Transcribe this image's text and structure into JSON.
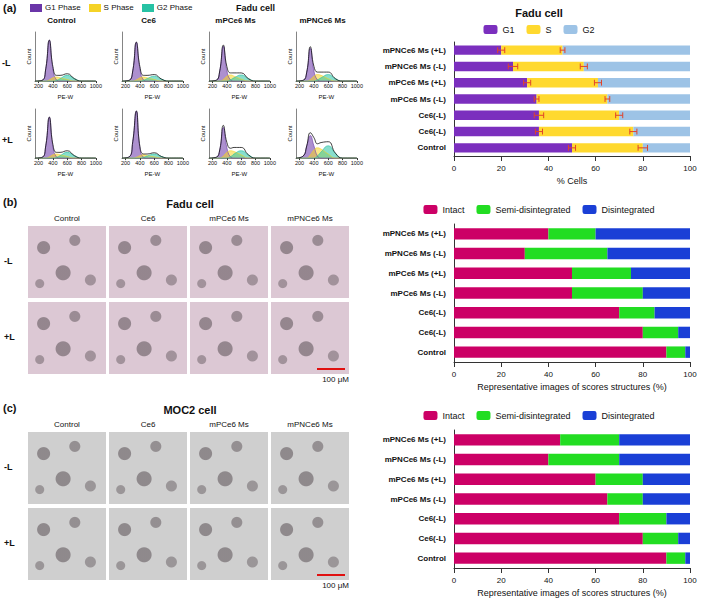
{
  "figure": {
    "panel_labels": [
      "(a)",
      "(b)",
      "(c)"
    ],
    "histograms": {
      "title": "Fadu cell",
      "columns": [
        "Control",
        "Ce6",
        "mPCe6 Ms",
        "mPNCe6 Ms"
      ],
      "rows": [
        "-L",
        "+L"
      ]
    },
    "image_grids": [
      {
        "title": "Fadu cell",
        "columns": [
          "Control",
          "Ce6",
          "mPCe6 Ms",
          "mPNCe6 Ms"
        ],
        "rows": [
          "-L",
          "+L"
        ],
        "scale_bar": "100 μM"
      },
      {
        "title": "MOC2 cell",
        "columns": [
          "Control",
          "Ce6",
          "mPCe6 Ms",
          "mPNCe6 Ms"
        ],
        "rows": [
          "-L",
          "+L"
        ],
        "scale_bar": "100 μM"
      }
    ]
  },
  "chart_data": [
    {
      "type": "line",
      "xlabel": "PE-W",
      "ylabel": "Count",
      "xlim": [
        150,
        1000
      ],
      "ylim": [
        0,
        120
      ],
      "xticks": [
        200,
        400,
        600,
        800,
        1000
      ],
      "tick_labels": "x",
      "grid": false,
      "x": [
        150,
        250,
        300,
        350,
        400,
        450,
        500,
        600,
        700,
        800,
        1000
      ],
      "values": [
        0,
        2,
        30,
        100,
        35,
        14,
        14,
        18,
        6,
        0,
        0
      ],
      "series": [
        {
          "name": "G1 Phase",
          "color": "#6a35a8",
          "values": [
            0,
            2,
            30,
            100,
            30,
            3,
            0,
            0,
            0,
            0,
            0
          ]
        },
        {
          "name": "S Phase",
          "color": "#f5d327",
          "values": [
            0,
            0,
            0,
            3,
            8,
            10,
            8,
            4,
            0,
            0,
            0
          ]
        },
        {
          "name": "G2 Phase",
          "color": "#27c2a4",
          "values": [
            0,
            0,
            0,
            0,
            0,
            2,
            6,
            14,
            6,
            0,
            0
          ]
        }
      ]
    },
    {
      "type": "line",
      "xlabel": "PE-W",
      "ylabel": "Count",
      "xlim": [
        150,
        1000
      ],
      "ylim": [
        0,
        120
      ],
      "xticks": [
        200,
        400,
        600,
        800,
        1000
      ],
      "tick_labels": "x",
      "grid": false,
      "x": [
        150,
        250,
        300,
        350,
        400,
        450,
        500,
        600,
        700,
        800,
        1000
      ],
      "values": [
        0,
        2,
        25,
        95,
        35,
        14,
        14,
        16,
        5,
        0,
        0
      ],
      "series": [
        {
          "name": "G1 Phase",
          "color": "#6a35a8",
          "values": [
            0,
            2,
            25,
            95,
            30,
            3,
            0,
            0,
            0,
            0,
            0
          ]
        },
        {
          "name": "S Phase",
          "color": "#f5d327",
          "values": [
            0,
            0,
            0,
            3,
            8,
            10,
            8,
            4,
            0,
            0,
            0
          ]
        },
        {
          "name": "G2 Phase",
          "color": "#27c2a4",
          "values": [
            0,
            0,
            0,
            0,
            0,
            2,
            6,
            12,
            5,
            0,
            0
          ]
        }
      ]
    },
    {
      "type": "line",
      "xlabel": "PE-W",
      "ylabel": "Count",
      "xlim": [
        150,
        1000
      ],
      "ylim": [
        0,
        120
      ],
      "xticks": [
        200,
        400,
        600,
        800,
        1000
      ],
      "tick_labels": "x",
      "grid": false,
      "x": [
        150,
        250,
        300,
        350,
        400,
        450,
        500,
        600,
        700,
        800,
        1000
      ],
      "values": [
        0,
        2,
        25,
        88,
        35,
        20,
        20,
        20,
        6,
        0,
        0
      ],
      "series": [
        {
          "name": "G1 Phase",
          "color": "#6a35a8",
          "values": [
            0,
            2,
            25,
            85,
            25,
            3,
            0,
            0,
            0,
            0,
            0
          ]
        },
        {
          "name": "S Phase",
          "color": "#f5d327",
          "values": [
            0,
            0,
            0,
            4,
            12,
            15,
            12,
            5,
            0,
            0,
            0
          ]
        },
        {
          "name": "G2 Phase",
          "color": "#27c2a4",
          "values": [
            0,
            0,
            0,
            0,
            0,
            3,
            8,
            15,
            6,
            0,
            0
          ]
        }
      ]
    },
    {
      "type": "line",
      "xlabel": "PE-W",
      "ylabel": "Count",
      "xlim": [
        150,
        1000
      ],
      "ylim": [
        0,
        120
      ],
      "xticks": [
        200,
        400,
        600,
        800,
        1000
      ],
      "tick_labels": "x",
      "grid": false,
      "x": [
        150,
        250,
        300,
        350,
        400,
        450,
        500,
        600,
        700,
        800,
        1000
      ],
      "values": [
        0,
        2,
        22,
        84,
        36,
        22,
        22,
        22,
        6,
        0,
        0
      ],
      "series": [
        {
          "name": "G1 Phase",
          "color": "#6a35a8",
          "values": [
            0,
            2,
            22,
            80,
            25,
            3,
            0,
            0,
            0,
            0,
            0
          ]
        },
        {
          "name": "S Phase",
          "color": "#f5d327",
          "values": [
            0,
            0,
            0,
            4,
            12,
            16,
            14,
            6,
            0,
            0,
            0
          ]
        },
        {
          "name": "G2 Phase",
          "color": "#27c2a4",
          "values": [
            0,
            0,
            0,
            0,
            0,
            3,
            8,
            16,
            6,
            0,
            0
          ]
        }
      ]
    },
    {
      "type": "line",
      "xlabel": "PE-W",
      "ylabel": "Count",
      "xlim": [
        150,
        1000
      ],
      "ylim": [
        0,
        120
      ],
      "xticks": [
        200,
        400,
        600,
        800,
        1000
      ],
      "tick_labels": "x",
      "grid": false,
      "x": [
        150,
        250,
        300,
        350,
        400,
        450,
        500,
        600,
        700,
        800,
        1000
      ],
      "values": [
        0,
        2,
        30,
        100,
        33,
        14,
        14,
        18,
        6,
        0,
        0
      ],
      "series": [
        {
          "name": "G1 Phase",
          "color": "#6a35a8",
          "values": [
            0,
            2,
            30,
            100,
            28,
            3,
            0,
            0,
            0,
            0,
            0
          ]
        },
        {
          "name": "S Phase",
          "color": "#f5d327",
          "values": [
            0,
            0,
            0,
            3,
            8,
            10,
            8,
            4,
            0,
            0,
            0
          ]
        },
        {
          "name": "G2 Phase",
          "color": "#27c2a4",
          "values": [
            0,
            0,
            0,
            0,
            0,
            2,
            6,
            14,
            6,
            0,
            0
          ]
        }
      ]
    },
    {
      "type": "line",
      "xlabel": "PE-W",
      "ylabel": "Count",
      "xlim": [
        150,
        1000
      ],
      "ylim": [
        0,
        120
      ],
      "xticks": [
        200,
        400,
        600,
        800,
        1000
      ],
      "tick_labels": "x",
      "grid": false,
      "x": [
        150,
        250,
        300,
        350,
        400,
        450,
        500,
        600,
        700,
        800,
        1000
      ],
      "values": [
        0,
        3,
        40,
        115,
        28,
        10,
        10,
        13,
        4,
        0,
        0
      ],
      "series": [
        {
          "name": "G1 Phase",
          "color": "#6a35a8",
          "values": [
            0,
            3,
            40,
            115,
            25,
            2,
            0,
            0,
            0,
            0,
            0
          ]
        },
        {
          "name": "S Phase",
          "color": "#f5d327",
          "values": [
            0,
            0,
            0,
            2,
            6,
            8,
            6,
            3,
            0,
            0,
            0
          ]
        },
        {
          "name": "G2 Phase",
          "color": "#27c2a4",
          "values": [
            0,
            0,
            0,
            0,
            0,
            2,
            5,
            10,
            4,
            0,
            0
          ]
        }
      ]
    },
    {
      "type": "line",
      "xlabel": "PE-W",
      "ylabel": "Count",
      "xlim": [
        150,
        1000
      ],
      "ylim": [
        0,
        120
      ],
      "xticks": [
        200,
        400,
        600,
        800,
        1000
      ],
      "tick_labels": "x",
      "grid": false,
      "x": [
        150,
        250,
        300,
        350,
        400,
        450,
        500,
        600,
        700,
        800,
        1000
      ],
      "values": [
        0,
        2,
        20,
        80,
        38,
        24,
        26,
        26,
        8,
        0,
        0
      ],
      "series": [
        {
          "name": "G1 Phase",
          "color": "#6a35a8",
          "values": [
            0,
            2,
            20,
            75,
            25,
            3,
            0,
            0,
            0,
            0,
            0
          ]
        },
        {
          "name": "S Phase",
          "color": "#f5d327",
          "values": [
            0,
            0,
            0,
            5,
            14,
            18,
            16,
            8,
            0,
            0,
            0
          ]
        },
        {
          "name": "G2 Phase",
          "color": "#27c2a4",
          "values": [
            0,
            0,
            0,
            0,
            0,
            3,
            10,
            18,
            8,
            0,
            0
          ]
        }
      ]
    },
    {
      "type": "line",
      "xlabel": "PE-W",
      "ylabel": "Count",
      "xlim": [
        150,
        1000
      ],
      "ylim": [
        0,
        120
      ],
      "xticks": [
        200,
        400,
        600,
        800,
        1000
      ],
      "tick_labels": "x",
      "grid": false,
      "x": [
        150,
        250,
        300,
        350,
        400,
        450,
        500,
        600,
        700,
        800,
        1000
      ],
      "values": [
        0,
        5,
        30,
        62,
        50,
        35,
        38,
        40,
        12,
        0,
        0
      ],
      "series": [
        {
          "name": "G1 Phase",
          "color": "#6a35a8",
          "values": [
            0,
            5,
            30,
            55,
            30,
            5,
            0,
            0,
            0,
            0,
            0
          ]
        },
        {
          "name": "S Phase",
          "color": "#f5d327",
          "values": [
            0,
            0,
            0,
            8,
            20,
            25,
            22,
            10,
            0,
            0,
            0
          ]
        },
        {
          "name": "G2 Phase",
          "color": "#27c2a4",
          "values": [
            0,
            0,
            0,
            0,
            0,
            5,
            15,
            30,
            12,
            0,
            0
          ]
        }
      ]
    },
    {
      "type": "bar",
      "orientation": "horizontal",
      "stacked": true,
      "legend": "top",
      "grid": false,
      "title": "Fadu cell",
      "xlabel": "% Cells",
      "categories": [
        "Control",
        "Ce6(-L)",
        "Ce6(-L)",
        "mPCe6 Ms (-L)",
        "mPCe6 Ms (+L)",
        "mPNCe6 Ms (-L)",
        "mPNCe6 Ms (+L)"
      ],
      "xlim": [
        0,
        100
      ],
      "xticks": [
        0,
        20,
        40,
        60,
        80,
        100
      ],
      "series": [
        {
          "name": "G1",
          "color": "#7b2fbe",
          "values": [
            50,
            36,
            36,
            35,
            31,
            25,
            20
          ],
          "errors": [
            1.5,
            1.5,
            2,
            1,
            1.5,
            2,
            1.5
          ]
        },
        {
          "name": "S",
          "color": "#ffd92f",
          "values": [
            30,
            40,
            34,
            30,
            30,
            30,
            26
          ],
          "errors": [
            2,
            1.5,
            1.5,
            1,
            1.5,
            1.5,
            1
          ]
        },
        {
          "name": "G2",
          "color": "#9dc3e6",
          "values": [
            20,
            24,
            30,
            35,
            39,
            45,
            54
          ]
        }
      ]
    },
    {
      "type": "bar",
      "orientation": "horizontal",
      "stacked": true,
      "legend": "top",
      "grid": false,
      "xlabel": "Representative images of scores structures (%)",
      "categories": [
        "Control",
        "Ce6(-L)",
        "Ce6(-L)",
        "mPCe6 Ms (-L)",
        "mPCe6 Ms (+L)",
        "mPNCe6 Ms (-L)",
        "mPNCe6 Ms (+L)"
      ],
      "xlim": [
        0,
        100
      ],
      "xticks": [
        0,
        20,
        40,
        60,
        80,
        100
      ],
      "series": [
        {
          "name": "Intact",
          "color": "#cc0066",
          "values": [
            90,
            80,
            70,
            50,
            50,
            30,
            40
          ]
        },
        {
          "name": "Semi-disintegrated",
          "color": "#22dd22",
          "values": [
            8,
            15,
            15,
            30,
            25,
            35,
            20
          ]
        },
        {
          "name": "Disintegrated",
          "color": "#1a3fd6",
          "values": [
            2,
            5,
            15,
            20,
            25,
            35,
            40
          ]
        }
      ]
    },
    {
      "type": "bar",
      "orientation": "horizontal",
      "stacked": true,
      "legend": "top",
      "grid": false,
      "xlabel": "Representative images of scores structures (%)",
      "categories": [
        "Control",
        "Ce6(-L)",
        "Ce6(-L)",
        "mPCe6 Ms (-L)",
        "mPCe6 Ms (+L)",
        "mPNCe6 Ms (-L)",
        "mPNCe6 Ms (+L)"
      ],
      "xlim": [
        0,
        100
      ],
      "xticks": [
        0,
        20,
        40,
        60,
        80,
        100
      ],
      "series": [
        {
          "name": "Intact",
          "color": "#cc0066",
          "values": [
            90,
            80,
            70,
            65,
            60,
            40,
            45
          ]
        },
        {
          "name": "Semi-disintegrated",
          "color": "#22dd22",
          "values": [
            8,
            15,
            20,
            15,
            20,
            30,
            25
          ]
        },
        {
          "name": "Disintegrated",
          "color": "#1a3fd6",
          "values": [
            2,
            5,
            10,
            20,
            20,
            30,
            30
          ]
        }
      ]
    }
  ]
}
